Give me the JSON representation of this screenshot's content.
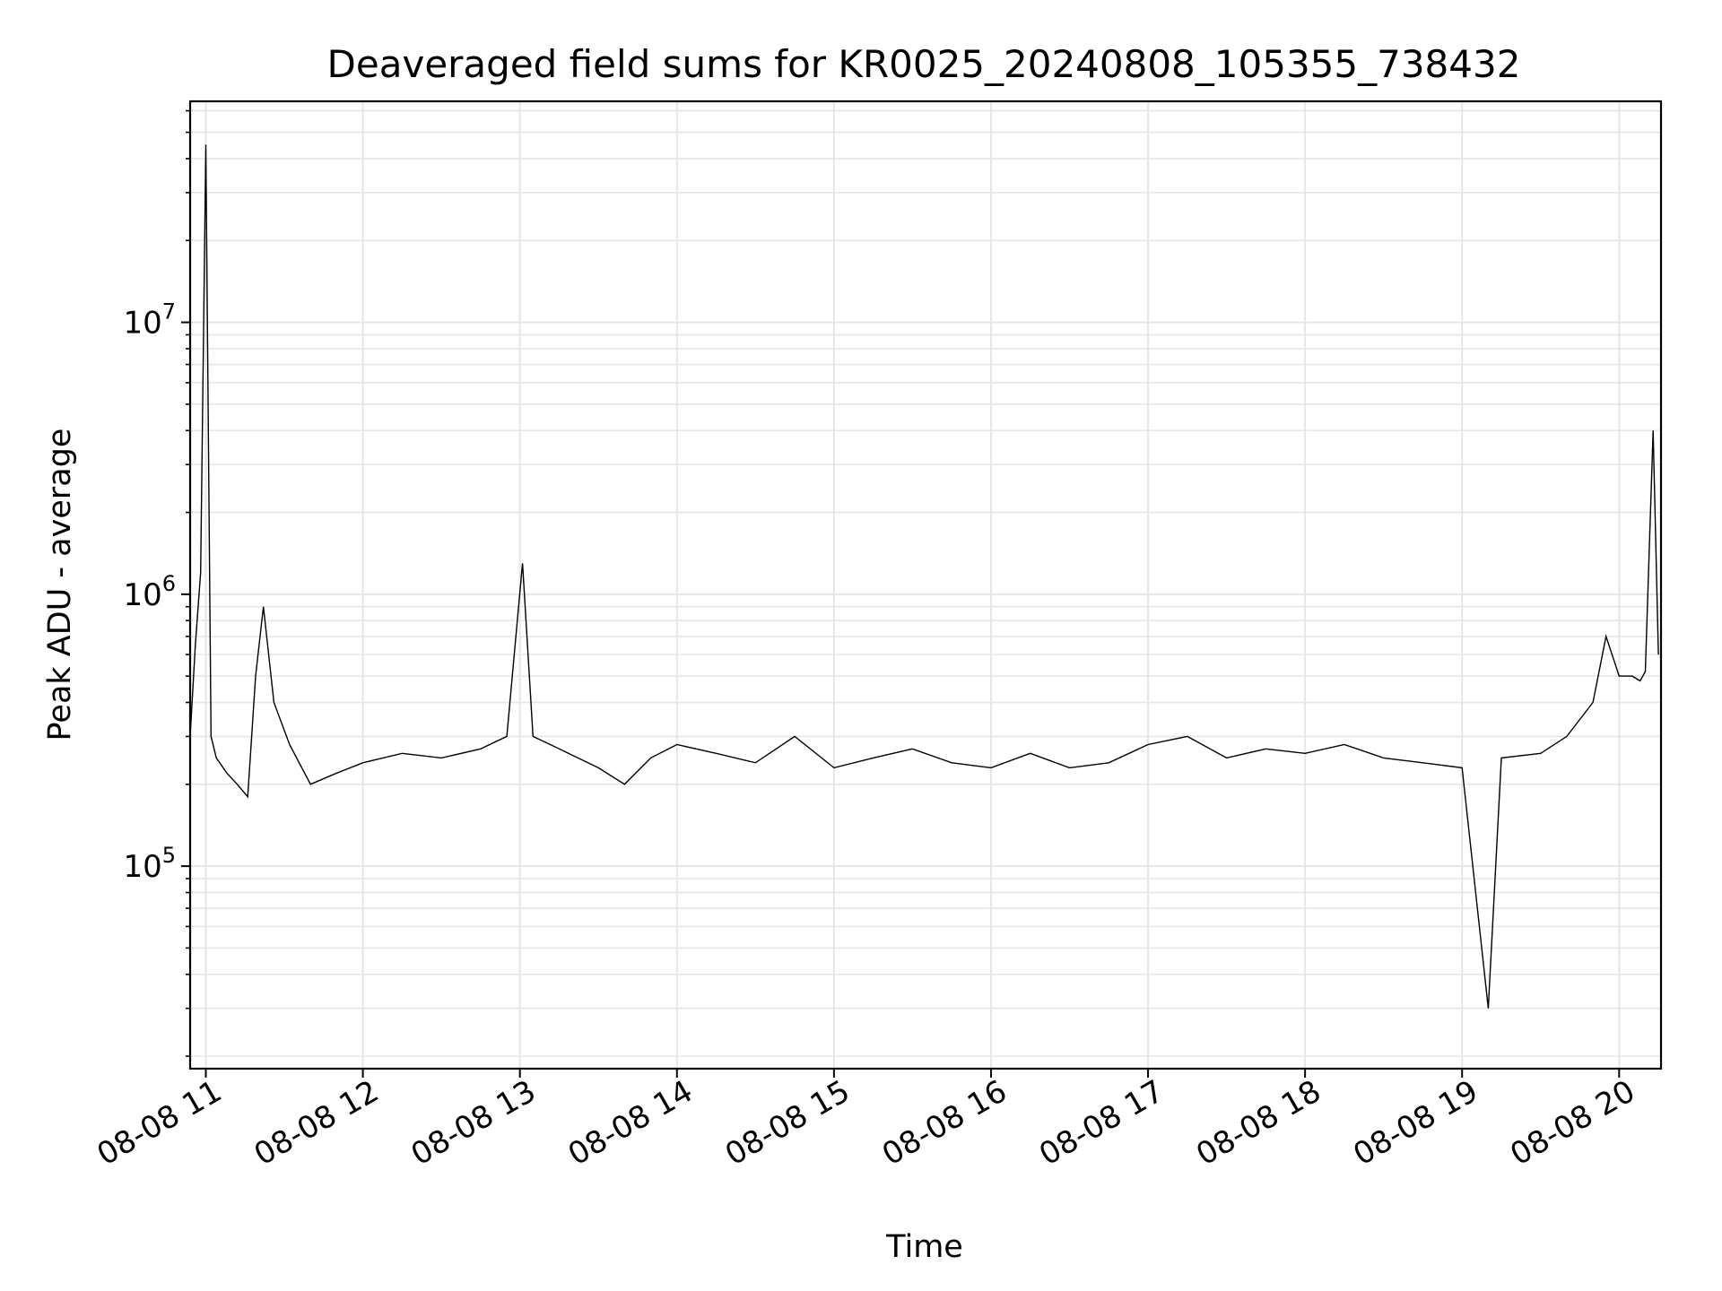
{
  "chart_data": {
    "type": "line",
    "title": "Deaveraged field sums for KR0025_20240808_105355_738432",
    "xlabel": "Time",
    "ylabel": "Peak ADU - average",
    "yscale": "log",
    "xlim": [
      "2024-08-08T10:54",
      "2024-08-08T20:16"
    ],
    "ylim": [
      18000,
      65000000
    ],
    "grid": true,
    "line_color": "#000000",
    "grid_color": "#e6e6e6",
    "x_ticks": [
      {
        "value": "2024-08-08T11:00",
        "label": "08-08 11"
      },
      {
        "value": "2024-08-08T12:00",
        "label": "08-08 12"
      },
      {
        "value": "2024-08-08T13:00",
        "label": "08-08 13"
      },
      {
        "value": "2024-08-08T14:00",
        "label": "08-08 14"
      },
      {
        "value": "2024-08-08T15:00",
        "label": "08-08 15"
      },
      {
        "value": "2024-08-08T16:00",
        "label": "08-08 16"
      },
      {
        "value": "2024-08-08T17:00",
        "label": "08-08 17"
      },
      {
        "value": "2024-08-08T18:00",
        "label": "08-08 18"
      },
      {
        "value": "2024-08-08T19:00",
        "label": "08-08 19"
      },
      {
        "value": "2024-08-08T20:00",
        "label": "08-08 20"
      }
    ],
    "y_ticks": [
      {
        "value": 100000,
        "base": "10",
        "exp": "5"
      },
      {
        "value": 1000000,
        "base": "10",
        "exp": "6"
      },
      {
        "value": 10000000,
        "base": "10",
        "exp": "7"
      }
    ],
    "series": [
      {
        "x": [
          "2024-08-08T10:54",
          "2024-08-08T10:56",
          "2024-08-08T10:58",
          "2024-08-08T11:00",
          "2024-08-08T11:02",
          "2024-08-08T11:04",
          "2024-08-08T11:08",
          "2024-08-08T11:12",
          "2024-08-08T11:16",
          "2024-08-08T11:19",
          "2024-08-08T11:22",
          "2024-08-08T11:26",
          "2024-08-08T11:32",
          "2024-08-08T11:40",
          "2024-08-08T11:50",
          "2024-08-08T12:00",
          "2024-08-08T12:15",
          "2024-08-08T12:30",
          "2024-08-08T12:45",
          "2024-08-08T12:55",
          "2024-08-08T13:01",
          "2024-08-08T13:05",
          "2024-08-08T13:15",
          "2024-08-08T13:30",
          "2024-08-08T13:40",
          "2024-08-08T13:50",
          "2024-08-08T14:00",
          "2024-08-08T14:15",
          "2024-08-08T14:30",
          "2024-08-08T14:45",
          "2024-08-08T15:00",
          "2024-08-08T15:15",
          "2024-08-08T15:30",
          "2024-08-08T15:45",
          "2024-08-08T16:00",
          "2024-08-08T16:15",
          "2024-08-08T16:30",
          "2024-08-08T16:45",
          "2024-08-08T17:00",
          "2024-08-08T17:15",
          "2024-08-08T17:30",
          "2024-08-08T17:45",
          "2024-08-08T18:00",
          "2024-08-08T18:15",
          "2024-08-08T18:30",
          "2024-08-08T18:45",
          "2024-08-08T19:00",
          "2024-08-08T19:10",
          "2024-08-08T19:15",
          "2024-08-08T19:30",
          "2024-08-08T19:40",
          "2024-08-08T19:50",
          "2024-08-08T19:55",
          "2024-08-08T20:00",
          "2024-08-08T20:05",
          "2024-08-08T20:08",
          "2024-08-08T20:10",
          "2024-08-08T20:13",
          "2024-08-08T20:15"
        ],
        "y": [
          300000,
          650000,
          1200000,
          45000000,
          300000,
          250000,
          220000,
          200000,
          180000,
          500000,
          900000,
          400000,
          280000,
          200000,
          220000,
          240000,
          260000,
          250000,
          270000,
          300000,
          1300000,
          300000,
          270000,
          230000,
          200000,
          250000,
          280000,
          260000,
          240000,
          300000,
          230000,
          250000,
          270000,
          240000,
          230000,
          260000,
          230000,
          240000,
          280000,
          300000,
          250000,
          270000,
          260000,
          280000,
          250000,
          240000,
          230000,
          30000,
          250000,
          260000,
          300000,
          400000,
          700000,
          500000,
          500000,
          480000,
          520000,
          4000000,
          600000
        ]
      }
    ]
  }
}
